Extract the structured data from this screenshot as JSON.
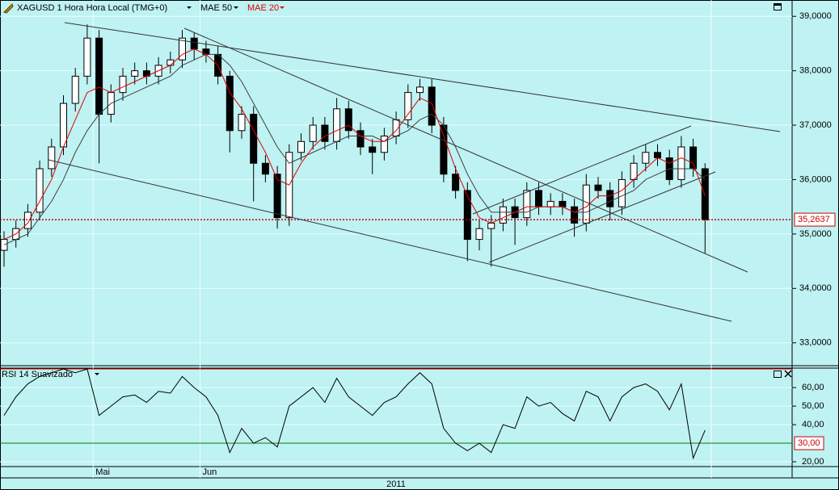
{
  "chart_data": [
    {
      "type": "candlestick",
      "title": "XAGUSD 1 Hora Hora Local (TMG+0)",
      "year_label": "2011",
      "categories": [
        null,
        null,
        null,
        null,
        null,
        null,
        null,
        null,
        null,
        null,
        null,
        null,
        null,
        null,
        null,
        null,
        null,
        null,
        null,
        null,
        null,
        null,
        null,
        null,
        null,
        null,
        null,
        null,
        null,
        null,
        null,
        null,
        null,
        null,
        null,
        null,
        null,
        null,
        null,
        null,
        null,
        null,
        null,
        null,
        null,
        null,
        null,
        null,
        null,
        null,
        null,
        null,
        null,
        null,
        null,
        null,
        null,
        null,
        null,
        null
      ],
      "xticks": [
        {
          "value": 7.5,
          "label": "Mai"
        },
        {
          "value": 16.5,
          "label": "Jun"
        }
      ],
      "open": [
        34.7,
        34.9,
        35.1,
        35.4,
        36.2,
        36.6,
        37.4,
        37.9,
        38.6,
        37.2,
        37.6,
        37.9,
        38.0,
        37.9,
        38.1,
        38.2,
        38.6,
        38.4,
        38.3,
        37.9,
        36.9,
        37.2,
        36.3,
        36.1,
        35.3,
        36.5,
        36.7,
        37.0,
        36.7,
        37.3,
        36.9,
        36.6,
        36.5,
        36.8,
        37.1,
        37.6,
        37.7,
        37.0,
        36.1,
        35.8,
        34.9,
        35.1,
        35.2,
        35.5,
        35.3,
        35.8,
        35.5,
        35.6,
        35.5,
        35.2,
        35.9,
        35.8,
        35.5,
        36.0,
        36.3,
        36.5,
        36.4,
        36.0,
        36.6,
        36.2
      ],
      "high": [
        35.05,
        35.25,
        35.55,
        36.35,
        36.75,
        37.55,
        38.05,
        38.85,
        38.75,
        37.75,
        38.05,
        38.15,
        38.15,
        38.25,
        38.35,
        38.75,
        38.7,
        38.55,
        38.45,
        38.0,
        37.35,
        37.35,
        36.45,
        36.25,
        36.65,
        36.85,
        37.15,
        37.15,
        37.5,
        37.45,
        37.05,
        36.75,
        36.95,
        37.25,
        37.75,
        37.85,
        37.85,
        37.15,
        36.25,
        35.95,
        35.25,
        35.35,
        35.65,
        35.65,
        35.95,
        35.95,
        35.75,
        35.75,
        35.65,
        36.1,
        36.05,
        35.95,
        36.15,
        36.45,
        36.65,
        36.65,
        36.55,
        36.8,
        36.75,
        36.3
      ],
      "low": [
        34.4,
        34.75,
        34.95,
        35.25,
        36.05,
        36.45,
        37.25,
        37.75,
        36.3,
        37.05,
        37.45,
        37.75,
        37.75,
        37.75,
        37.95,
        38.05,
        38.2,
        38.15,
        37.75,
        36.5,
        36.75,
        35.6,
        35.95,
        35.1,
        35.15,
        36.35,
        36.55,
        36.55,
        36.55,
        36.75,
        36.45,
        36.1,
        36.35,
        36.65,
        36.95,
        37.45,
        36.85,
        35.95,
        35.65,
        34.5,
        34.7,
        34.4,
        35.05,
        34.8,
        35.15,
        35.35,
        35.35,
        35.35,
        34.95,
        35.05,
        35.65,
        35.25,
        35.35,
        35.85,
        36.15,
        36.25,
        35.9,
        35.85,
        36.05,
        34.65
      ],
      "close": [
        34.9,
        35.1,
        35.4,
        36.2,
        36.6,
        37.4,
        37.9,
        38.6,
        37.2,
        37.6,
        37.9,
        38.0,
        37.9,
        38.1,
        38.2,
        38.6,
        38.4,
        38.3,
        37.9,
        36.9,
        37.2,
        36.3,
        36.1,
        35.3,
        36.5,
        36.7,
        37.0,
        36.7,
        37.3,
        36.9,
        36.6,
        36.5,
        36.8,
        37.1,
        37.6,
        37.7,
        37.0,
        36.1,
        35.8,
        34.9,
        35.1,
        35.2,
        35.5,
        35.3,
        35.8,
        35.5,
        35.6,
        35.5,
        35.2,
        35.9,
        35.8,
        35.5,
        36.0,
        36.3,
        36.5,
        36.4,
        36.0,
        36.6,
        36.2,
        35.26
      ],
      "series": [
        {
          "name": "MAE 50",
          "color": "#404040",
          "values": [
            34.8,
            34.9,
            35.0,
            35.3,
            35.6,
            36.0,
            36.5,
            36.9,
            37.2,
            37.4,
            37.5,
            37.6,
            37.7,
            37.8,
            37.9,
            38.1,
            38.2,
            38.3,
            38.3,
            38.1,
            37.8,
            37.4,
            37.0,
            36.6,
            36.3,
            36.4,
            36.5,
            36.6,
            36.7,
            36.8,
            36.8,
            36.8,
            36.7,
            36.8,
            36.9,
            37.1,
            37.2,
            37.0,
            36.6,
            36.1,
            35.7,
            35.4,
            35.4,
            35.4,
            35.4,
            35.5,
            35.5,
            35.5,
            35.4,
            35.4,
            35.5,
            35.6,
            35.7,
            35.8,
            36.0,
            36.1,
            36.2,
            36.2,
            36.2,
            36.0
          ]
        },
        {
          "name": "MAE 20",
          "color": "#e00000",
          "values": [
            34.9,
            35.0,
            35.2,
            35.6,
            36.0,
            36.6,
            37.1,
            37.6,
            37.7,
            37.6,
            37.7,
            37.8,
            37.9,
            38.0,
            38.1,
            38.3,
            38.4,
            38.3,
            38.1,
            37.6,
            37.3,
            36.9,
            36.5,
            36.0,
            35.9,
            36.3,
            36.6,
            36.8,
            36.9,
            37.0,
            36.8,
            36.7,
            36.7,
            36.9,
            37.2,
            37.5,
            37.4,
            36.8,
            36.2,
            35.7,
            35.3,
            35.2,
            35.3,
            35.4,
            35.5,
            35.5,
            35.5,
            35.5,
            35.4,
            35.5,
            35.7,
            35.7,
            35.8,
            36.0,
            36.2,
            36.4,
            36.3,
            36.4,
            36.3,
            35.7
          ]
        }
      ],
      "ylim": [
        32.58,
        39.3
      ],
      "yticks": [
        {
          "value": 33,
          "label": "33,0000"
        },
        {
          "value": 34,
          "label": "34,0000"
        },
        {
          "value": 35,
          "label": "35,0000"
        },
        {
          "value": 36,
          "label": "36,0000"
        },
        {
          "value": 37,
          "label": "37,0000"
        },
        {
          "value": 38,
          "label": "38,0000"
        },
        {
          "value": 39,
          "label": "39,0000"
        }
      ],
      "last_price": {
        "value": 35.2637,
        "label": "35,2637",
        "color": "#cc0000"
      },
      "grid": true
    },
    {
      "type": "line",
      "title": "RSI 14 Suavizado",
      "color": "#000000",
      "values": [
        45,
        55,
        62,
        66,
        68,
        70,
        68,
        70,
        45,
        50,
        55,
        56,
        52,
        58,
        57,
        66,
        60,
        55,
        45,
        25,
        38,
        30,
        33,
        28,
        50,
        55,
        60,
        52,
        65,
        55,
        50,
        45,
        52,
        55,
        62,
        68,
        62,
        38,
        30,
        26,
        30,
        25,
        40,
        38,
        55,
        50,
        52,
        46,
        42,
        58,
        55,
        42,
        55,
        60,
        62,
        58,
        48,
        62,
        22,
        37
      ],
      "ylim": [
        17.4,
        70.5
      ],
      "yticks": [
        {
          "value": 20,
          "label": "20,00"
        },
        {
          "value": 40,
          "label": "40,00"
        },
        {
          "value": 50,
          "label": "50,00"
        },
        {
          "value": 60,
          "label": "60,00"
        }
      ],
      "level": {
        "value": 30,
        "label": "30,00",
        "color": "#008000"
      },
      "grid": true
    }
  ]
}
